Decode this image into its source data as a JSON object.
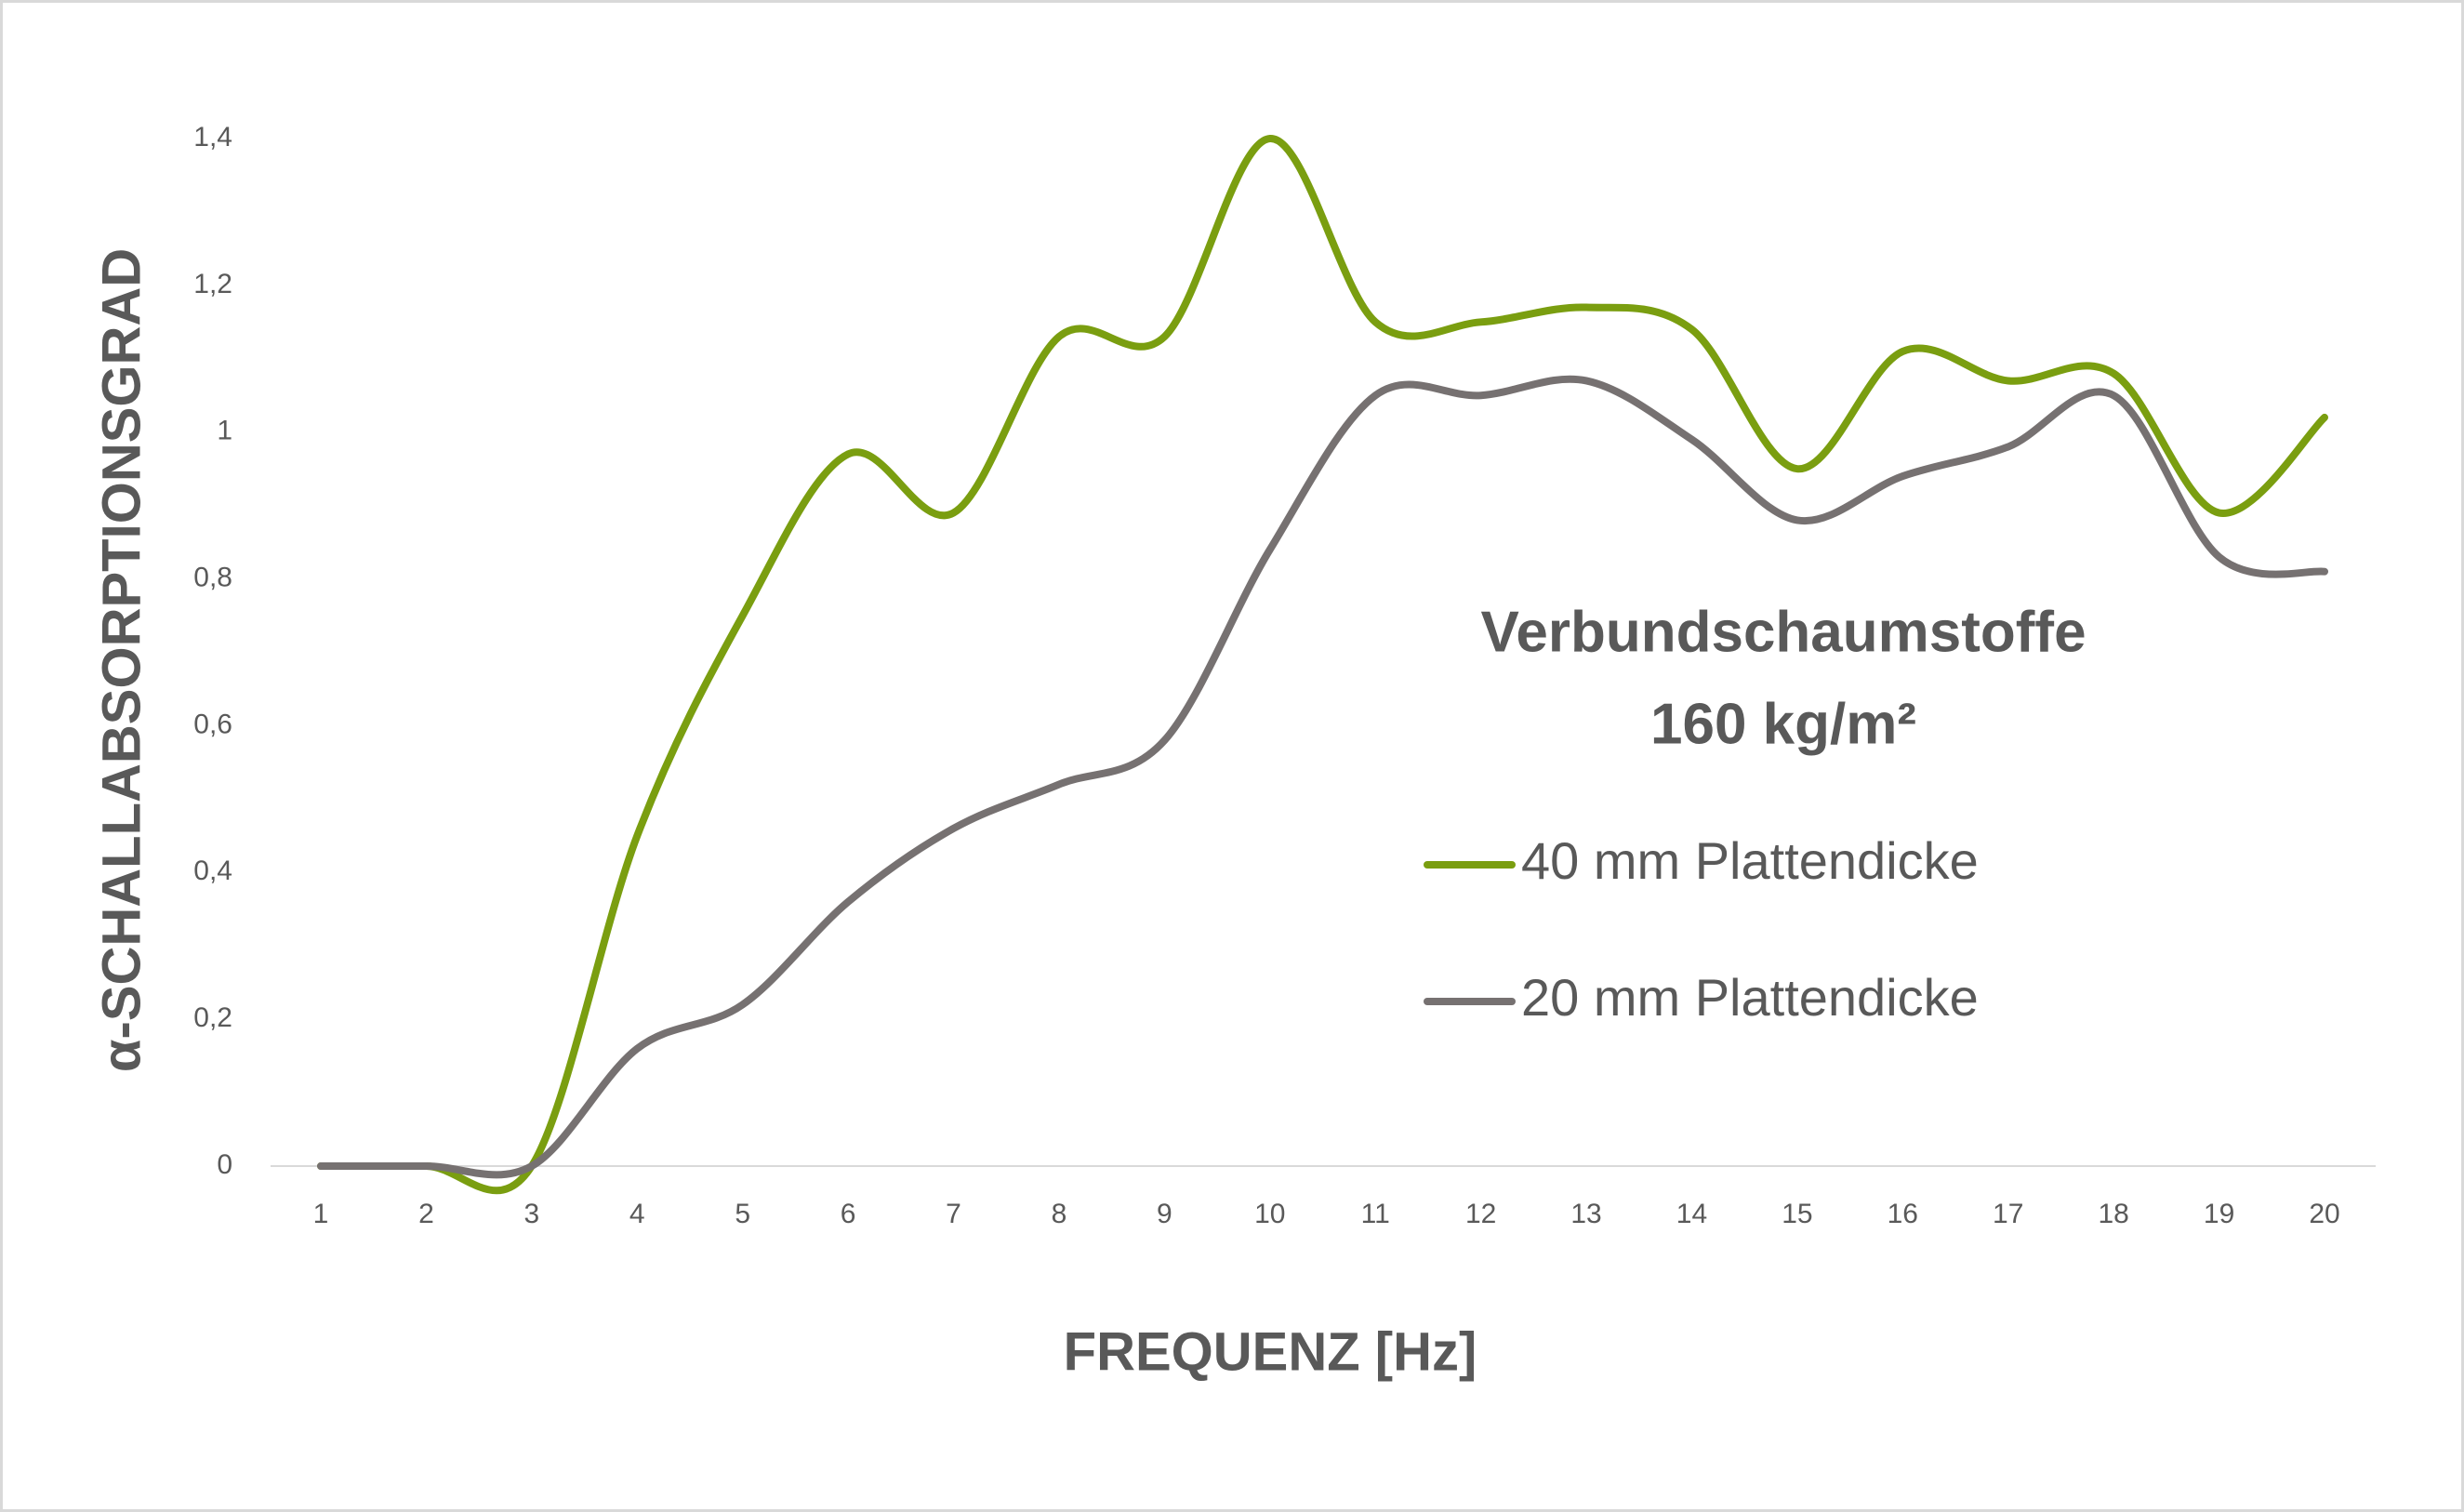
{
  "chart_data": {
    "type": "line",
    "title": "Verbundschaumstoffe",
    "subtitle": "160 kg/m²",
    "x_label": "FREQUENZ [Hz]",
    "y_label": "α-SCHALLABSORPTIONSGRAD",
    "categories": [
      "1",
      "2",
      "3",
      "4",
      "5",
      "6",
      "7",
      "8",
      "9",
      "10",
      "11",
      "12",
      "13",
      "14",
      "15",
      "16",
      "17",
      "18",
      "19",
      "20"
    ],
    "series": [
      {
        "name": "40 mm Plattendicke",
        "color": "#7a9e10",
        "values": [
          0,
          0,
          0,
          0.45,
          0.75,
          0.97,
          0.89,
          1.13,
          1.13,
          1.4,
          1.15,
          1.15,
          1.17,
          1.14,
          0.95,
          1.11,
          1.07,
          1.08,
          0.89,
          1.02
        ]
      },
      {
        "name": "20 mm Plattendicke",
        "color": "#767171",
        "values": [
          0,
          0,
          0,
          0.16,
          0.22,
          0.36,
          0.46,
          0.52,
          0.58,
          0.84,
          1.05,
          1.05,
          1.07,
          0.99,
          0.88,
          0.94,
          0.98,
          1.05,
          0.83,
          0.81
        ]
      }
    ],
    "ylim": [
      0,
      1.4
    ],
    "yticks": [
      0,
      {
        "value": 0.2,
        "label": "0,2"
      },
      {
        "value": 0.4,
        "label": "0,4"
      },
      {
        "value": 0.6,
        "label": "0,6"
      },
      {
        "value": 0.8,
        "label": "0,8"
      },
      1,
      {
        "value": 1.2,
        "label": "1,2"
      },
      {
        "value": 1.4,
        "label": "1,4"
      }
    ],
    "grid": false,
    "smooth": true
  }
}
